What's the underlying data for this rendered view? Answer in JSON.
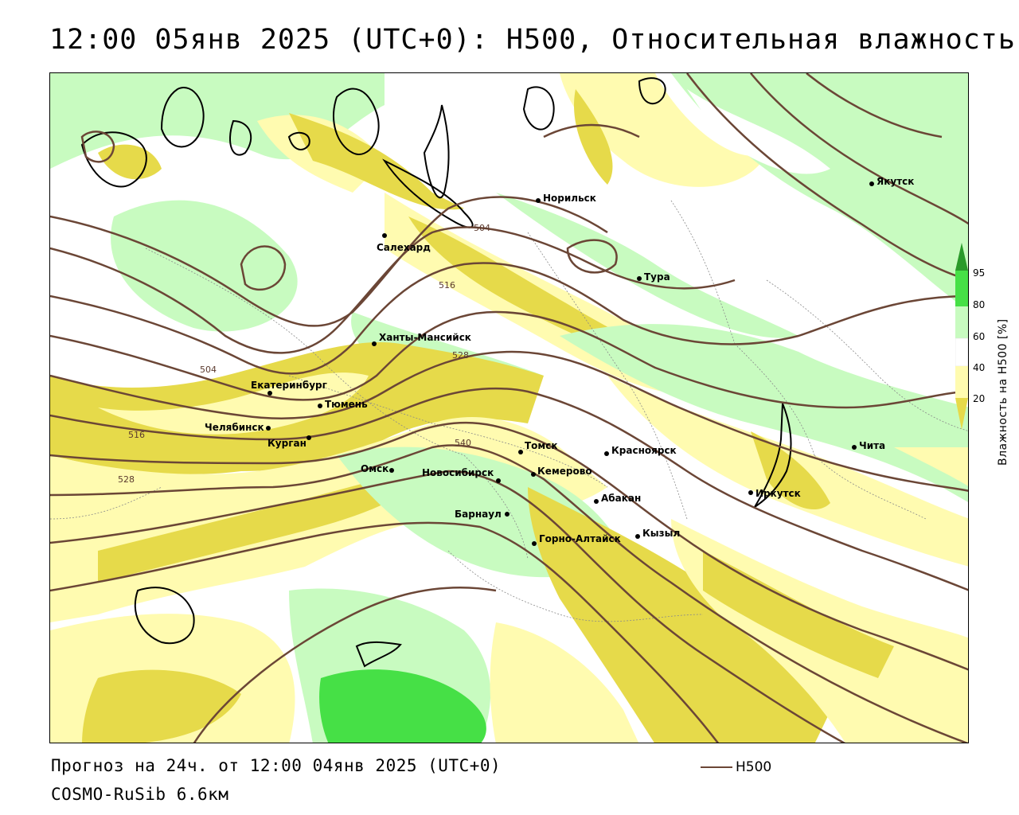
{
  "title": "12:00 05янв 2025 (UTC+0): H500, Относительная влажность",
  "footer": {
    "forecast": "Прогноз на 24ч. от 12:00 04янв 2025 (UTC+0)",
    "model": "COSMO-RuSib 6.6км"
  },
  "legend": {
    "contour_name": "H500",
    "contour_color": "#6b4636"
  },
  "colorbar": {
    "title": "Влажность на H500 [%]",
    "ticks": [
      "95",
      "80",
      "60",
      "40",
      "20"
    ],
    "colors": {
      "lt20": "#d4c62a",
      "20_40": "#e6da4a",
      "40_60": "#fffbb0",
      "60_80": "#c8fbc0",
      "80_95": "#46e046",
      "gt95": "#2a9a2a"
    }
  },
  "cities": [
    {
      "name": "Якутск",
      "lon": 129.7,
      "lat": 62.0
    },
    {
      "name": "Норильск",
      "lon": 88.2,
      "lat": 69.3
    },
    {
      "name": "Салехард",
      "lon": 66.6,
      "lat": 66.5
    },
    {
      "name": "Тура",
      "lon": 100.2,
      "lat": 64.3
    },
    {
      "name": "Ханты-Мансийск",
      "lon": 69.0,
      "lat": 61.0
    },
    {
      "name": "Екатеринбург",
      "lon": 60.6,
      "lat": 56.8
    },
    {
      "name": "Тюмень",
      "lon": 65.5,
      "lat": 57.2
    },
    {
      "name": "Челябинск",
      "lon": 61.4,
      "lat": 55.2
    },
    {
      "name": "Курган",
      "lon": 65.3,
      "lat": 55.4
    },
    {
      "name": "Омск",
      "lon": 73.4,
      "lat": 55.0
    },
    {
      "name": "Томск",
      "lon": 85.0,
      "lat": 56.5
    },
    {
      "name": "Новосибирск",
      "lon": 82.9,
      "lat": 55.0
    },
    {
      "name": "Кемерово",
      "lon": 86.1,
      "lat": 55.4
    },
    {
      "name": "Красноярск",
      "lon": 92.9,
      "lat": 56.0
    },
    {
      "name": "Абакан",
      "lon": 91.4,
      "lat": 53.7
    },
    {
      "name": "Барнаул",
      "lon": 83.8,
      "lat": 53.3
    },
    {
      "name": "Горно-Алтайск",
      "lon": 85.9,
      "lat": 51.9
    },
    {
      "name": "Кызыл",
      "lon": 94.4,
      "lat": 51.7
    },
    {
      "name": "Иркутск",
      "lon": 104.3,
      "lat": 52.3
    },
    {
      "name": "Чита",
      "lon": 113.5,
      "lat": 52.0
    }
  ],
  "contour_labels": [
    "504",
    "516",
    "528",
    "540",
    "504",
    "516",
    "528"
  ]
}
